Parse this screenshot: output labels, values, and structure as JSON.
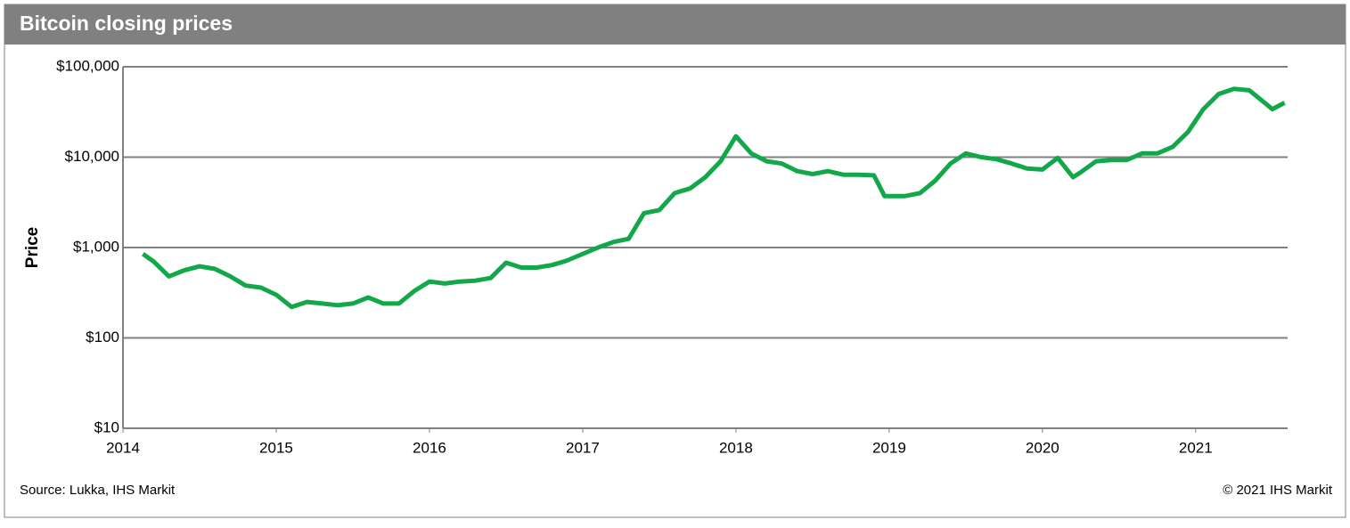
{
  "chart_data": {
    "type": "line",
    "title": "Bitcoin closing prices",
    "ylabel": "Price",
    "source": "Source: Lukka, IHS Markit",
    "copyright": "© 2021 IHS Markit",
    "log_y": true,
    "grid": true,
    "xlim": [
      2014,
      2021.6
    ],
    "xticks": [
      2014,
      2015,
      2016,
      2017,
      2018,
      2019,
      2020,
      2021
    ],
    "ylim": [
      10,
      100000
    ],
    "yticks": [
      {
        "value": 10,
        "label": "$10"
      },
      {
        "value": 100,
        "label": "$100"
      },
      {
        "value": 1000,
        "label": "$1,000"
      },
      {
        "value": 10000,
        "label": "$10,000"
      },
      {
        "value": 100000,
        "label": "$100,000"
      }
    ],
    "series": [
      {
        "name": "Bitcoin",
        "color": "#12a84a",
        "x": [
          2014.13,
          2014.2,
          2014.3,
          2014.4,
          2014.5,
          2014.6,
          2014.7,
          2014.8,
          2014.9,
          2015.0,
          2015.1,
          2015.2,
          2015.3,
          2015.4,
          2015.5,
          2015.6,
          2015.7,
          2015.8,
          2015.9,
          2016.0,
          2016.1,
          2016.2,
          2016.3,
          2016.4,
          2016.5,
          2016.6,
          2016.7,
          2016.8,
          2016.9,
          2017.0,
          2017.1,
          2017.2,
          2017.3,
          2017.4,
          2017.5,
          2017.6,
          2017.7,
          2017.8,
          2017.9,
          2018.0,
          2018.1,
          2018.2,
          2018.3,
          2018.4,
          2018.5,
          2018.6,
          2018.7,
          2018.8,
          2018.9,
          2018.97,
          2019.1,
          2019.2,
          2019.3,
          2019.4,
          2019.5,
          2019.6,
          2019.7,
          2019.8,
          2019.9,
          2020.0,
          2020.1,
          2020.2,
          2020.25,
          2020.35,
          2020.45,
          2020.55,
          2020.65,
          2020.75,
          2020.85,
          2020.95,
          2021.05,
          2021.15,
          2021.25,
          2021.35,
          2021.45,
          2021.5,
          2021.58
        ],
        "values": [
          850,
          700,
          480,
          560,
          620,
          580,
          480,
          380,
          360,
          300,
          220,
          250,
          240,
          230,
          240,
          280,
          240,
          240,
          330,
          420,
          400,
          420,
          430,
          460,
          680,
          600,
          600,
          640,
          720,
          850,
          1000,
          1150,
          1250,
          2400,
          2600,
          4000,
          4500,
          6000,
          9000,
          17000,
          11000,
          9000,
          8500,
          7000,
          6500,
          7000,
          6400,
          6400,
          6300,
          3700,
          3700,
          4000,
          5500,
          8500,
          11000,
          10000,
          9500,
          8500,
          7500,
          7300,
          9800,
          6000,
          6800,
          9000,
          9300,
          9300,
          11000,
          11000,
          13000,
          19000,
          34000,
          50000,
          57000,
          55000,
          40000,
          34000,
          40000
        ]
      }
    ]
  }
}
